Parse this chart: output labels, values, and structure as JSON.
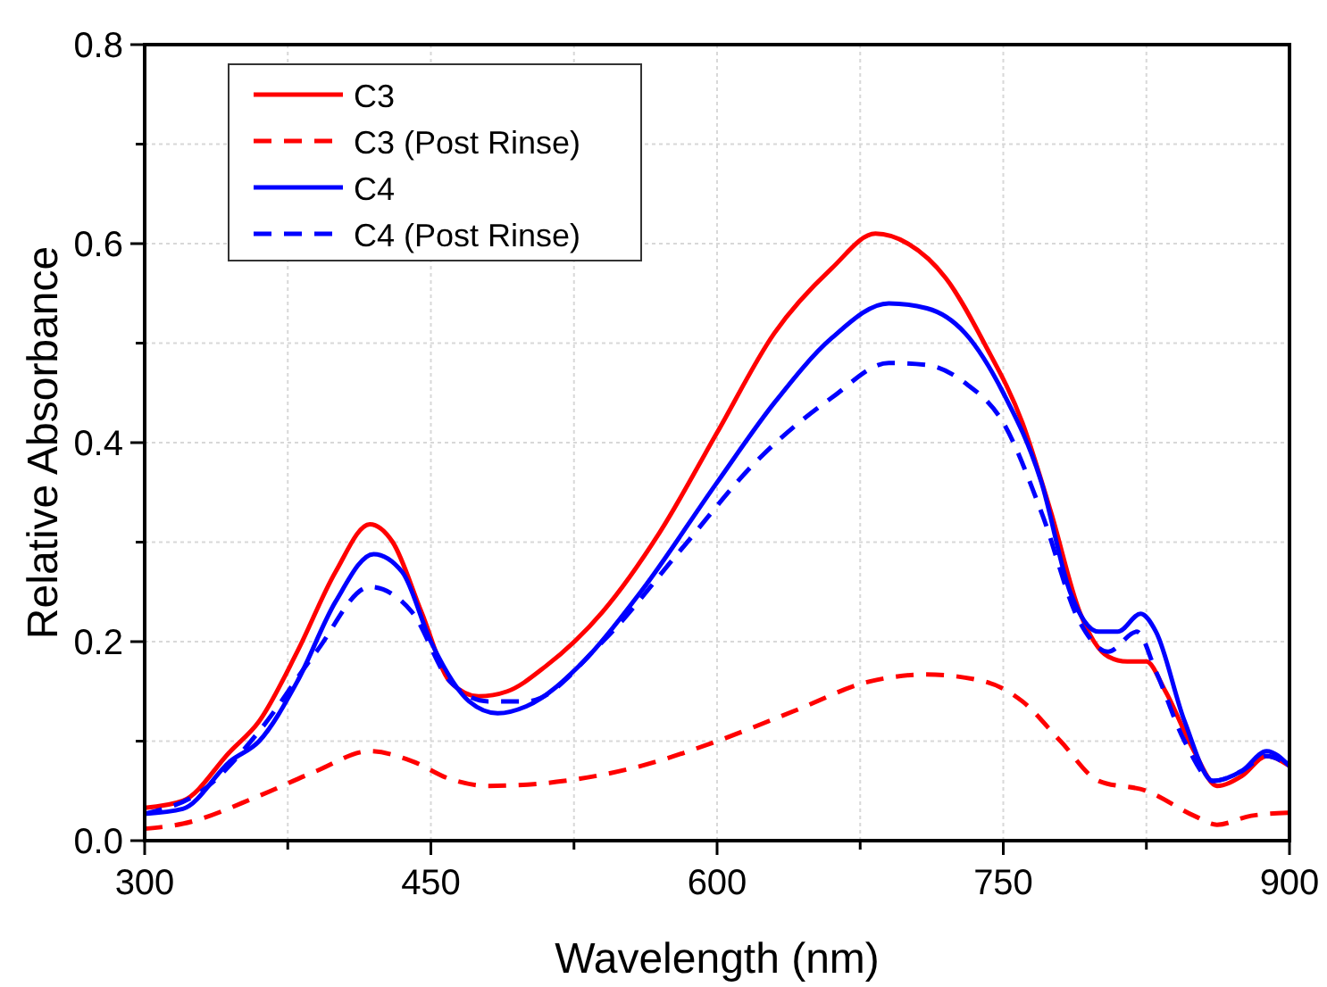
{
  "chart_data": {
    "type": "line",
    "xlabel": "Wavelength (nm)",
    "ylabel": "Relative Absorbance",
    "xlim": [
      300,
      900
    ],
    "ylim": [
      0,
      0.8
    ],
    "xticks": [
      300,
      {
        "value": 375,
        "label": null
      },
      450,
      {
        "value": 525,
        "label": null
      },
      600,
      {
        "value": 675,
        "label": null
      },
      750,
      {
        "value": 825,
        "label": null
      },
      900
    ],
    "yticks": [
      {
        "value": 0,
        "label": "0.0"
      },
      {
        "value": 0.1,
        "label": null
      },
      0.2,
      {
        "value": 0.3,
        "label": null
      },
      0.4,
      {
        "value": 0.5,
        "label": null
      },
      0.6,
      {
        "value": 0.7,
        "label": null
      },
      0.8
    ],
    "grid": true,
    "legend": "top left",
    "marker": "none",
    "series": [
      {
        "name": "C3",
        "color": "#ff0000",
        "line_style": "solid",
        "x": [
          300,
          320,
          345,
          360,
          380,
          400,
          418,
          430,
          445,
          460,
          475,
          490,
          510,
          540,
          570,
          600,
          630,
          660,
          683,
          700,
          720,
          740,
          760,
          775,
          790,
          805,
          815,
          825,
          835,
          850,
          862,
          875,
          888,
          900
        ],
        "values": [
          0.033,
          0.04,
          0.09,
          0.12,
          0.19,
          0.27,
          0.318,
          0.3,
          0.23,
          0.16,
          0.145,
          0.15,
          0.175,
          0.23,
          0.31,
          0.41,
          0.51,
          0.575,
          0.61,
          0.6,
          0.565,
          0.5,
          0.42,
          0.33,
          0.23,
          0.185,
          0.18,
          0.18,
          0.15,
          0.09,
          0.055,
          0.065,
          0.085,
          0.075
        ]
      },
      {
        "name": "C3 (Post Rinse)",
        "color": "#ff0000",
        "line_style": "dashed",
        "x": [
          300,
          320,
          360,
          390,
          418,
          440,
          460,
          480,
          520,
          560,
          600,
          640,
          680,
          710,
          740,
          760,
          780,
          800,
          825,
          850,
          862,
          880,
          900
        ],
        "values": [
          0.012,
          0.017,
          0.045,
          0.07,
          0.09,
          0.08,
          0.062,
          0.055,
          0.06,
          0.075,
          0.1,
          0.13,
          0.16,
          0.167,
          0.16,
          0.14,
          0.1,
          0.06,
          0.05,
          0.025,
          0.016,
          0.025,
          0.028
        ]
      },
      {
        "name": "C4",
        "color": "#0000ff",
        "line_style": "solid",
        "x": [
          300,
          320,
          345,
          360,
          380,
          400,
          420,
          435,
          450,
          470,
          485,
          500,
          530,
          560,
          600,
          630,
          660,
          690,
          710,
          730,
          750,
          770,
          785,
          800,
          810,
          822,
          830,
          845,
          860,
          875,
          888,
          900
        ],
        "values": [
          0.027,
          0.032,
          0.08,
          0.1,
          0.16,
          0.24,
          0.288,
          0.27,
          0.2,
          0.14,
          0.128,
          0.135,
          0.18,
          0.25,
          0.36,
          0.44,
          0.505,
          0.54,
          0.535,
          0.51,
          0.45,
          0.36,
          0.25,
          0.21,
          0.21,
          0.228,
          0.21,
          0.12,
          0.06,
          0.07,
          0.09,
          0.075
        ]
      },
      {
        "name": "C4 (Post Rinse)",
        "color": "#0000ff",
        "line_style": "dashed",
        "x": [
          300,
          330,
          360,
          390,
          418,
          440,
          460,
          480,
          500,
          540,
          580,
          620,
          660,
          690,
          710,
          730,
          750,
          770,
          790,
          805,
          820,
          830,
          845,
          860,
          875,
          888,
          900
        ],
        "values": [
          0.027,
          0.05,
          0.11,
          0.19,
          0.255,
          0.23,
          0.16,
          0.14,
          0.14,
          0.2,
          0.29,
          0.38,
          0.445,
          0.48,
          0.478,
          0.46,
          0.42,
          0.33,
          0.22,
          0.19,
          0.21,
          0.17,
          0.1,
          0.06,
          0.07,
          0.085,
          0.075
        ]
      }
    ]
  }
}
